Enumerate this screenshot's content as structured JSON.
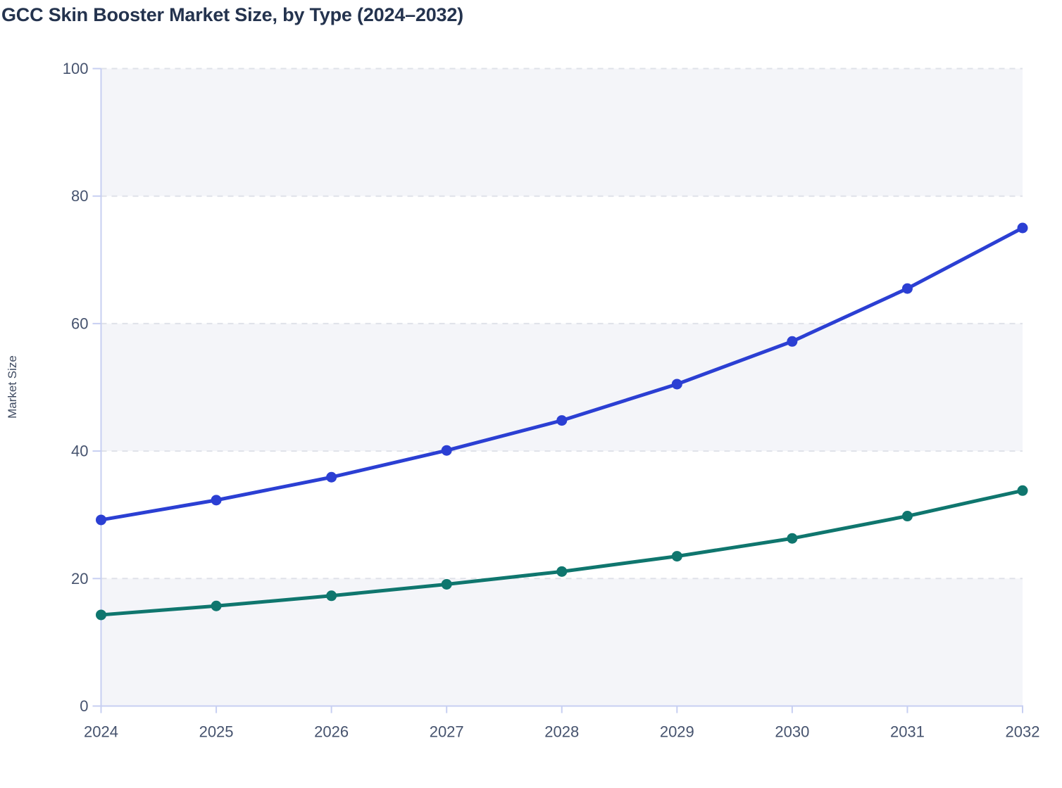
{
  "page": {
    "title": "GCC Skin Booster Market Size, by Type (2024–2032)"
  },
  "chart_data": {
    "type": "line",
    "title": "GCC Skin Booster Market Size, by Type (2024–2032)",
    "xlabel": "",
    "ylabel": "Market Size",
    "categories": [
      "2024",
      "2025",
      "2026",
      "2027",
      "2028",
      "2029",
      "2030",
      "2031",
      "2032"
    ],
    "series": [
      {
        "name": "series-blue",
        "color": "#2b3fd3",
        "values": [
          29.2,
          32.3,
          35.9,
          40.1,
          44.8,
          50.5,
          57.2,
          65.5,
          75.0
        ]
      },
      {
        "name": "series-teal",
        "color": "#0f766e",
        "values": [
          14.3,
          15.7,
          17.3,
          19.1,
          21.1,
          23.5,
          26.3,
          29.8,
          33.8
        ]
      }
    ],
    "ylim": [
      0,
      100
    ],
    "yticks": [
      0,
      20,
      40,
      60,
      80,
      100
    ],
    "legend": "none",
    "grid": "horizontal dashed lines at each y tick",
    "plot_bands": "alternating shaded bands 0-20, 40-60, 80-100",
    "colors": {
      "band_fill": "#f4f5f9",
      "gridline": "#dfe2e9",
      "axis_line": "#c7cff2",
      "tick_label": "#46536e",
      "title": "#24334e",
      "axis_title": "#3e4a61"
    }
  }
}
